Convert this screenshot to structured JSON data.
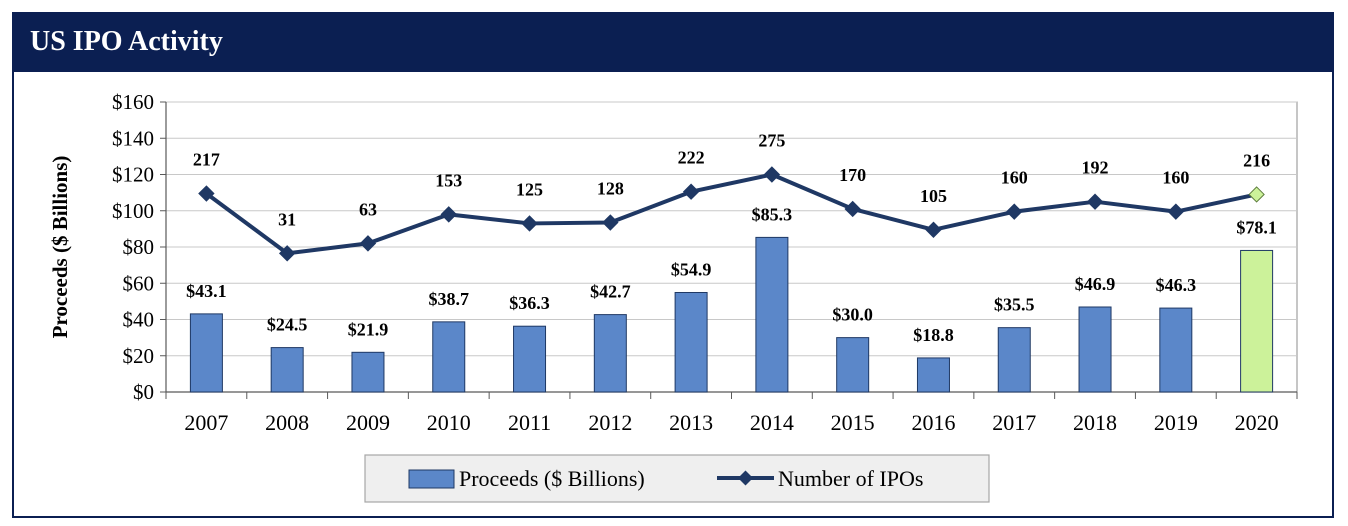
{
  "header": {
    "title": "US IPO Activity"
  },
  "colors": {
    "bar": "#5b87c9",
    "bar_highlight": "#ccf29a",
    "line": "#1f3864",
    "header_bg": "#0b1f52"
  },
  "chart_data": {
    "type": "bar",
    "categories": [
      "2007",
      "2008",
      "2009",
      "2010",
      "2011",
      "2012",
      "2013",
      "2014",
      "2015",
      "2016",
      "2017",
      "2018",
      "2019",
      "2020"
    ],
    "series": [
      {
        "name": "Proceeds ($ Billions)",
        "type": "bar",
        "values": [
          43.1,
          24.5,
          21.9,
          38.7,
          36.3,
          42.7,
          54.9,
          85.3,
          30.0,
          18.8,
          35.5,
          46.9,
          46.3,
          78.1
        ],
        "labels": [
          "$43.1",
          "$24.5",
          "$21.9",
          "$38.7",
          "$36.3",
          "$42.7",
          "$54.9",
          "$85.3",
          "$30.0",
          "$18.8",
          "$35.5",
          "$46.9",
          "$46.3",
          "$78.1"
        ]
      },
      {
        "name": "Number of IPOs",
        "type": "line",
        "values": [
          217,
          31,
          63,
          153,
          125,
          128,
          222,
          275,
          170,
          105,
          160,
          192,
          160,
          216
        ],
        "labels": [
          "217",
          "31",
          "63",
          "153",
          "125",
          "128",
          "222",
          "275",
          "170",
          "105",
          "160",
          "192",
          "160",
          "216"
        ]
      }
    ],
    "ylabel": "Proceeds ($ Billions)",
    "ylim": [
      0,
      160
    ],
    "yticks": [
      0,
      20,
      40,
      60,
      80,
      100,
      120,
      140,
      160
    ],
    "ytick_labels": [
      "$0",
      "$20",
      "$40",
      "$60",
      "$80",
      "$100",
      "$120",
      "$140",
      "$160"
    ],
    "line_plot_y": [
      109.5,
      76.5,
      82,
      98,
      93,
      93.5,
      110.5,
      120,
      101,
      89.5,
      99.5,
      105,
      99.5,
      109
    ],
    "highlight_index": 13,
    "grid": true,
    "legend": "bottom-center"
  }
}
